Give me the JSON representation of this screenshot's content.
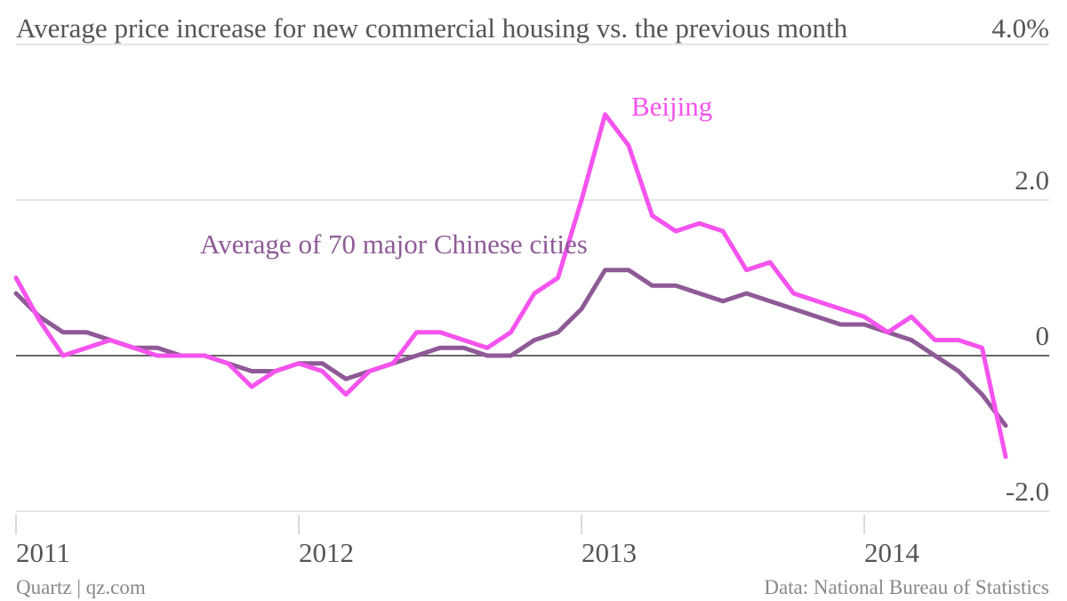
{
  "chart_data": {
    "type": "line",
    "title": "Average price increase for new commercial housing vs. the previous month",
    "categories": [
      "2011",
      null,
      null,
      null,
      null,
      null,
      null,
      null,
      null,
      null,
      null,
      null,
      "2012",
      null,
      null,
      null,
      null,
      null,
      null,
      null,
      null,
      null,
      null,
      null,
      "2013",
      null,
      null,
      null,
      null,
      null,
      null,
      null,
      null,
      null,
      null,
      null,
      "2014",
      null,
      null,
      null,
      null,
      null,
      null
    ],
    "series": [
      {
        "name": "Beijing",
        "color": "#f553ee",
        "values": [
          1.0,
          0.45,
          0.0,
          0.1,
          0.2,
          0.1,
          0.0,
          0.0,
          0.0,
          -0.1,
          -0.4,
          -0.2,
          -0.1,
          -0.2,
          -0.5,
          -0.2,
          -0.1,
          0.3,
          0.3,
          0.2,
          0.1,
          0.3,
          0.8,
          1.0,
          2.0,
          3.1,
          2.7,
          1.8,
          1.6,
          1.7,
          1.6,
          1.1,
          1.2,
          0.8,
          0.7,
          0.6,
          0.5,
          0.3,
          0.5,
          0.2,
          0.2,
          0.1,
          -1.3
        ]
      },
      {
        "name": "Average of 70 major Chinese cities",
        "color": "#8e5a96",
        "values": [
          0.8,
          0.5,
          0.3,
          0.3,
          0.2,
          0.1,
          0.1,
          0.0,
          0.0,
          -0.1,
          -0.2,
          -0.2,
          -0.1,
          -0.1,
          -0.3,
          -0.2,
          -0.1,
          0.0,
          0.1,
          0.1,
          0.0,
          0.0,
          0.2,
          0.3,
          0.6,
          1.1,
          1.1,
          0.9,
          0.9,
          0.8,
          0.7,
          0.8,
          0.7,
          0.6,
          0.5,
          0.4,
          0.4,
          0.3,
          0.2,
          0.0,
          -0.2,
          -0.5,
          -0.9
        ]
      }
    ],
    "ylim": [
      -2,
      4
    ],
    "yticks": [
      {
        "value": 4,
        "label": "4.0%"
      },
      {
        "value": 2,
        "label": "2.0"
      },
      0,
      {
        "value": -2,
        "label": "-2.0"
      }
    ],
    "grid": true,
    "source": "Data: National Bureau of Statistics",
    "credit": "Quartz | qz.com"
  }
}
